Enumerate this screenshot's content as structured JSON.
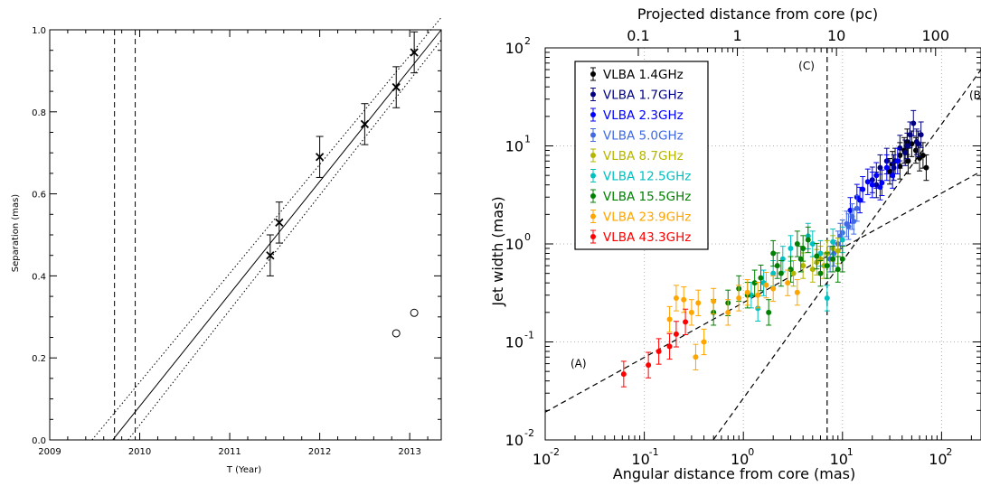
{
  "chart_data": [
    {
      "type": "scatter",
      "xlabel": "T (Year)",
      "ylabel": "Separation (mas)",
      "xlim": [
        2009.0,
        2013.35
      ],
      "ylim": [
        0.0,
        1.0
      ],
      "x_ticks": [
        "2009",
        "2010",
        "2011",
        "2012",
        "2013"
      ],
      "y_ticks": [
        "0.0",
        "0.2",
        "0.4",
        "0.6",
        "0.8",
        "1.0"
      ],
      "series": [
        {
          "marker": "cross",
          "color": "#000000",
          "points": [
            {
              "x": 2011.45,
              "y": 0.45,
              "err": 0.05
            },
            {
              "x": 2011.55,
              "y": 0.53,
              "err": 0.05
            },
            {
              "x": 2012.0,
              "y": 0.69,
              "err": 0.05
            },
            {
              "x": 2012.5,
              "y": 0.77,
              "err": 0.05
            },
            {
              "x": 2012.85,
              "y": 0.86,
              "err": 0.05
            },
            {
              "x": 2013.05,
              "y": 0.945,
              "err": 0.05
            }
          ]
        },
        {
          "marker": "open-circle",
          "color": "#000000",
          "points": [
            {
              "x": 2012.85,
              "y": 0.26
            },
            {
              "x": 2013.05,
              "y": 0.31
            }
          ]
        }
      ],
      "fit_line": {
        "x": [
          2009.7,
          2013.35
        ],
        "y": [
          0.0,
          1.0
        ]
      },
      "fit_bounds": [
        {
          "x": [
            2009.47,
            2013.35
          ],
          "y": [
            0.0,
            1.03
          ]
        },
        {
          "x": [
            2009.87,
            2013.35
          ],
          "y": [
            0.0,
            0.975
          ]
        }
      ],
      "vlines": [
        2009.72,
        2009.95
      ]
    },
    {
      "type": "scatter",
      "xscale": "log",
      "yscale": "log",
      "xlabel": "Angular distance from core (mas)",
      "ylabel": "Jet width (mas)",
      "top_xlabel": "Projected distance from core (pc)",
      "xlim": [
        0.01,
        250
      ],
      "ylim": [
        0.01,
        100
      ],
      "x_tick_bases": [
        "10",
        "10",
        "10",
        "10",
        "10"
      ],
      "x_tick_exps": [
        "-2",
        "-1",
        "0",
        "1",
        "2"
      ],
      "y_tick_bases": [
        "10",
        "10",
        "10",
        "10",
        "10"
      ],
      "y_tick_exps": [
        "-2",
        "-1",
        "0",
        "1",
        "2"
      ],
      "top_ticks": [
        "0.1",
        "1",
        "10",
        "100"
      ],
      "top_tick_positions_mas": [
        0.087,
        0.87,
        8.7,
        87
      ],
      "grid": true,
      "legend_position": "top-left",
      "annotations": [
        {
          "text": "(A)",
          "x": 0.018,
          "y": 0.055
        },
        {
          "text": "(B)",
          "x": 190,
          "y": 30
        },
        {
          "text": "(C)",
          "x": 3.6,
          "y": 60
        }
      ],
      "lines": [
        {
          "name": "(A)",
          "x": [
            0.01,
            250
          ],
          "y": [
            0.0192,
            5.5
          ]
        },
        {
          "name": "(B)",
          "x": [
            0.5,
            250
          ],
          "y": [
            0.0101,
            60
          ]
        }
      ],
      "vline": 7.0,
      "series": [
        {
          "name": "VLBA 1.4GHz",
          "color": "#000000",
          "points": [
            [
              30,
              5.5
            ],
            [
              34,
              7
            ],
            [
              38,
              8
            ],
            [
              42,
              9
            ],
            [
              46,
              7
            ],
            [
              50,
              10.5
            ],
            [
              55,
              9
            ],
            [
              60,
              7.5
            ],
            [
              65,
              8
            ],
            [
              70,
              6
            ],
            [
              38,
              6.2
            ],
            [
              45,
              11
            ],
            [
              32,
              6.5
            ]
          ]
        },
        {
          "name": "VLBA 1.7GHz",
          "color": "#000080",
          "points": [
            [
              20,
              4.5
            ],
            [
              24,
              6
            ],
            [
              28,
              7
            ],
            [
              33,
              6
            ],
            [
              38,
              9.5
            ],
            [
              43,
              8.5
            ],
            [
              48,
              13
            ],
            [
              52,
              17
            ],
            [
              56,
              11
            ],
            [
              62,
              13
            ],
            [
              22,
              4
            ],
            [
              45,
              10
            ],
            [
              58,
              10.5
            ]
          ]
        },
        {
          "name": "VLBA 2.3GHz",
          "color": "#0000ff",
          "points": [
            [
              12,
              2.2
            ],
            [
              14,
              3
            ],
            [
              16,
              3.6
            ],
            [
              18,
              4.3
            ],
            [
              20,
              4
            ],
            [
              22,
              5
            ],
            [
              25,
              4.2
            ],
            [
              28,
              6
            ],
            [
              32,
              5
            ],
            [
              36,
              7
            ],
            [
              15,
              2.8
            ],
            [
              24,
              3.8
            ]
          ]
        },
        {
          "name": "VLBA 5.0GHz",
          "color": "#4169e1",
          "points": [
            [
              7.5,
              0.7
            ],
            [
              8.2,
              0.8
            ],
            [
              9,
              1.0
            ],
            [
              10,
              1.3
            ],
            [
              11,
              1.6
            ],
            [
              12.5,
              1.9
            ],
            [
              14,
              2.3
            ],
            [
              9.5,
              1.2
            ],
            [
              11.5,
              1.5
            ],
            [
              13,
              1.7
            ]
          ]
        },
        {
          "name": "VLBA 8.7GHz",
          "color": "#b5b500",
          "points": [
            [
              3.2,
              0.5
            ],
            [
              4,
              0.6
            ],
            [
              5,
              0.55
            ],
            [
              6,
              0.7
            ],
            [
              7,
              0.8
            ],
            [
              8,
              0.9
            ],
            [
              9,
              0.85
            ],
            [
              5.5,
              0.65
            ],
            [
              6.5,
              0.6
            ]
          ]
        },
        {
          "name": "VLBA 12.5GHz",
          "color": "#00c0c0",
          "points": [
            [
              1.2,
              0.3
            ],
            [
              1.6,
              0.4
            ],
            [
              2,
              0.5
            ],
            [
              2.5,
              0.7
            ],
            [
              3,
              0.9
            ],
            [
              4.5,
              1.2
            ],
            [
              6,
              0.8
            ],
            [
              7,
              0.28
            ],
            [
              8,
              1.05
            ],
            [
              10,
              1.1
            ],
            [
              1.4,
              0.22
            ],
            [
              5,
              1.0
            ]
          ]
        },
        {
          "name": "VLBA 15.5GHz",
          "color": "#008000",
          "points": [
            [
              0.5,
              0.2
            ],
            [
              0.7,
              0.25
            ],
            [
              0.9,
              0.35
            ],
            [
              1.1,
              0.3
            ],
            [
              1.3,
              0.4
            ],
            [
              1.5,
              0.45
            ],
            [
              1.8,
              0.2
            ],
            [
              2,
              0.8
            ],
            [
              2.4,
              0.5
            ],
            [
              3,
              0.55
            ],
            [
              3.5,
              1.0
            ],
            [
              4,
              0.9
            ],
            [
              4.5,
              1.1
            ],
            [
              5.5,
              0.75
            ],
            [
              6,
              0.5
            ],
            [
              7,
              0.6
            ],
            [
              8,
              0.7
            ],
            [
              9,
              0.55
            ],
            [
              10,
              0.7
            ],
            [
              2.2,
              0.6
            ],
            [
              3.8,
              0.7
            ]
          ]
        },
        {
          "name": "VLBA 23.9GHz",
          "color": "#ffa500",
          "points": [
            [
              0.18,
              0.17
            ],
            [
              0.21,
              0.28
            ],
            [
              0.25,
              0.27
            ],
            [
              0.3,
              0.2
            ],
            [
              0.33,
              0.07
            ],
            [
              0.4,
              0.1
            ],
            [
              0.5,
              0.26
            ],
            [
              0.7,
              0.2
            ],
            [
              0.9,
              0.28
            ],
            [
              1.1,
              0.32
            ],
            [
              1.4,
              0.3
            ],
            [
              2,
              0.35
            ],
            [
              2.8,
              0.4
            ],
            [
              3.5,
              0.32
            ],
            [
              0.35,
              0.25
            ],
            [
              1.7,
              0.38
            ]
          ]
        },
        {
          "name": "VLBA 43.3GHz",
          "color": "#ff0000",
          "points": [
            [
              0.062,
              0.047
            ],
            [
              0.11,
              0.058
            ],
            [
              0.14,
              0.08
            ],
            [
              0.18,
              0.09
            ],
            [
              0.21,
              0.12
            ],
            [
              0.26,
              0.16
            ]
          ]
        }
      ]
    }
  ]
}
